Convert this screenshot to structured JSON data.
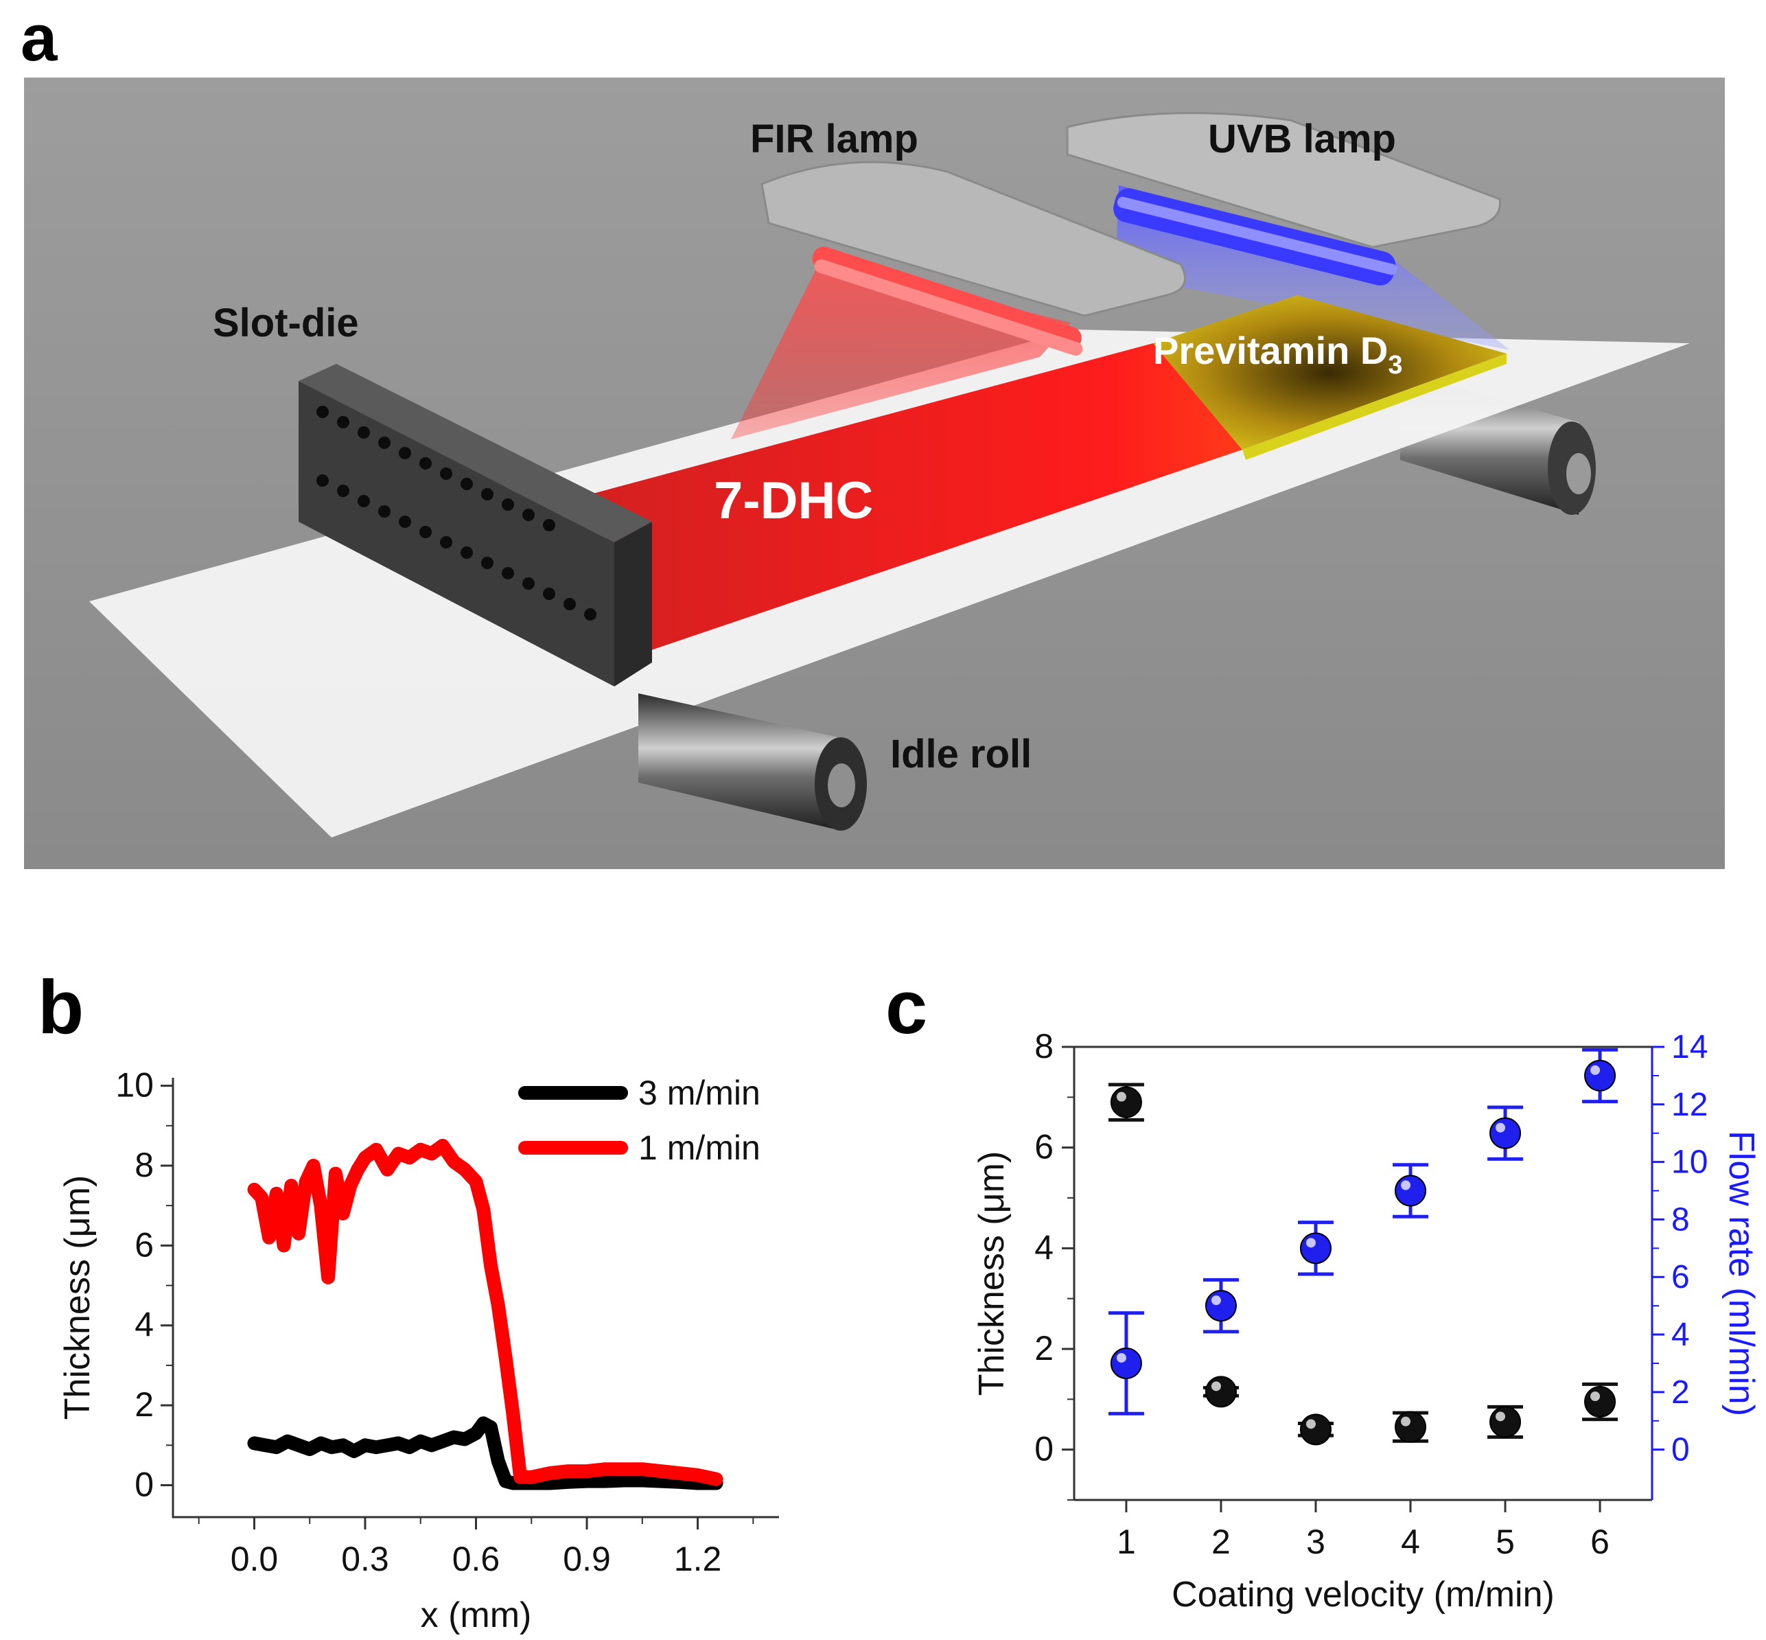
{
  "panels": {
    "a": {
      "letter": "a",
      "labels": {
        "fir_lamp": "FIR lamp",
        "uvb_lamp": "UVB lamp",
        "slot_die": "Slot-die",
        "previtamin": "Previtamin D",
        "previtamin_sub": "3",
        "dhc": "7-DHC",
        "idle_roll": "Idle roll"
      }
    },
    "b": {
      "letter": "b",
      "chart_data": {
        "type": "line",
        "title": "",
        "xlabel": "x (mm)",
        "ylabel": "Thickness (μm)",
        "xlim": [
          -0.22,
          1.42
        ],
        "ylim": [
          -0.8,
          10.2
        ],
        "xticks": [
          0.0,
          0.3,
          0.6,
          0.9,
          1.2
        ],
        "xtick_labels": [
          "0.0",
          "0.3",
          "0.6",
          "0.9",
          "1.2"
        ],
        "yticks": [
          0,
          2,
          4,
          6,
          8,
          10
        ],
        "ytick_labels": [
          "0",
          "2",
          "4",
          "6",
          "8",
          "10"
        ],
        "legend_position": "top-right",
        "series": [
          {
            "name": "3 m/min",
            "color": "#000000",
            "x": [
              0.0,
              0.03,
              0.06,
              0.09,
              0.12,
              0.15,
              0.18,
              0.21,
              0.24,
              0.27,
              0.3,
              0.33,
              0.36,
              0.39,
              0.42,
              0.45,
              0.48,
              0.51,
              0.54,
              0.57,
              0.6,
              0.62,
              0.64,
              0.66,
              0.68,
              0.7,
              0.75,
              0.8,
              0.85,
              0.9,
              0.95,
              1.0,
              1.05,
              1.1,
              1.15,
              1.2,
              1.25
            ],
            "y": [
              1.05,
              1.0,
              0.95,
              1.1,
              1.0,
              0.9,
              1.05,
              0.95,
              1.0,
              0.85,
              1.0,
              0.95,
              1.0,
              1.05,
              0.95,
              1.1,
              1.0,
              1.1,
              1.2,
              1.15,
              1.3,
              1.55,
              1.45,
              0.6,
              0.1,
              0.05,
              0.05,
              0.05,
              0.08,
              0.1,
              0.1,
              0.12,
              0.12,
              0.1,
              0.08,
              0.05,
              0.05
            ]
          },
          {
            "name": "1 m/min",
            "color": "#ff0000",
            "x": [
              0.0,
              0.02,
              0.04,
              0.06,
              0.08,
              0.1,
              0.12,
              0.14,
              0.16,
              0.18,
              0.2,
              0.22,
              0.24,
              0.26,
              0.28,
              0.3,
              0.33,
              0.36,
              0.39,
              0.42,
              0.45,
              0.48,
              0.51,
              0.54,
              0.57,
              0.6,
              0.62,
              0.64,
              0.66,
              0.68,
              0.7,
              0.72,
              0.75,
              0.8,
              0.85,
              0.9,
              0.95,
              1.0,
              1.05,
              1.1,
              1.15,
              1.2,
              1.25
            ],
            "y": [
              7.4,
              7.2,
              6.2,
              7.3,
              6.0,
              7.5,
              6.3,
              7.6,
              8.0,
              7.0,
              5.2,
              7.8,
              6.8,
              7.5,
              7.9,
              8.2,
              8.4,
              7.9,
              8.3,
              8.2,
              8.4,
              8.3,
              8.5,
              8.1,
              7.9,
              7.6,
              6.9,
              5.5,
              4.5,
              3.2,
              1.8,
              0.2,
              0.2,
              0.3,
              0.35,
              0.35,
              0.4,
              0.4,
              0.4,
              0.35,
              0.3,
              0.25,
              0.15
            ]
          }
        ]
      }
    },
    "c": {
      "letter": "c",
      "chart_data": {
        "type": "scatter",
        "title": "",
        "xlabel": "Coating velocity (m/min)",
        "ylabel": "Thickness (μm)",
        "y2label": "Flow rate (ml/min)",
        "xlim": [
          0.45,
          6.55
        ],
        "ylim": [
          -1.0,
          8.0
        ],
        "y2lim": [
          -1.75,
          14.0
        ],
        "xticks": [
          1,
          2,
          3,
          4,
          5,
          6
        ],
        "xtick_labels": [
          "1",
          "2",
          "3",
          "4",
          "5",
          "6"
        ],
        "yticks": [
          0,
          2,
          4,
          6,
          8
        ],
        "ytick_labels": [
          "0",
          "2",
          "4",
          "6",
          "8"
        ],
        "y2ticks": [
          0,
          2,
          4,
          6,
          8,
          10,
          12,
          14
        ],
        "y2tick_labels": [
          "0",
          "2",
          "4",
          "6",
          "8",
          "10",
          "12",
          "14"
        ],
        "y2_color": "#1a1aff",
        "series": [
          {
            "name": "Thickness",
            "axis": "left",
            "color": "#111111",
            "x": [
              1,
              2,
              3,
              4,
              5,
              6
            ],
            "y": [
              6.9,
              1.15,
              0.4,
              0.45,
              0.55,
              0.95
            ],
            "err": [
              0.35,
              0.08,
              0.12,
              0.28,
              0.3,
              0.35
            ]
          },
          {
            "name": "Flow rate",
            "axis": "right",
            "color": "#2020ee",
            "x": [
              1,
              2,
              3,
              4,
              5,
              6
            ],
            "y": [
              3.0,
              5.0,
              7.0,
              9.0,
              11.0,
              13.0
            ],
            "err": [
              1.75,
              0.9,
              0.9,
              0.9,
              0.9,
              0.9
            ]
          }
        ]
      }
    }
  }
}
